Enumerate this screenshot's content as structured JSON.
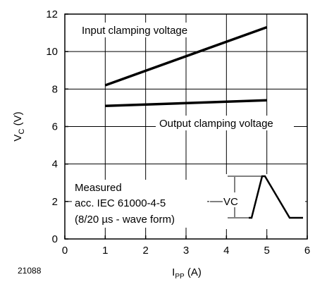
{
  "chart_data": {
    "type": "line",
    "figure_number": "21088",
    "xlabel": {
      "main": "I",
      "sub": "PP",
      "unit": " (A)"
    },
    "ylabel": {
      "main": "V",
      "sub": "C",
      "unit": " (V)"
    },
    "xlim": [
      0,
      6
    ],
    "ylim": [
      0,
      12
    ],
    "xticks": [
      0,
      1,
      2,
      3,
      4,
      5,
      6
    ],
    "yticks": [
      0,
      2,
      4,
      6,
      8,
      10,
      12
    ],
    "grid": true,
    "series": [
      {
        "name": "Input clamping voltage",
        "x": [
          1,
          5
        ],
        "y": [
          8.2,
          11.3
        ]
      },
      {
        "name": "Output clamping voltage",
        "x": [
          1,
          5
        ],
        "y": [
          7.1,
          7.4
        ]
      }
    ],
    "annotations": {
      "measured": [
        "Measured",
        "acc. IEC 61000-4-5",
        "(8/20 µs - wave form)"
      ],
      "waveform_label": {
        "main": "V",
        "sub": "C"
      }
    }
  }
}
